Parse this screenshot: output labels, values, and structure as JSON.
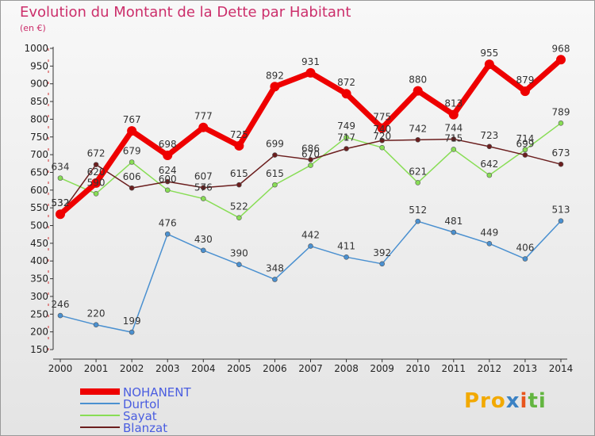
{
  "chart_data": {
    "type": "line",
    "title": "Evolution du Montant de la Dette par Habitant",
    "subtitle": "(en €)",
    "categories": [
      "2000",
      "2001",
      "2002",
      "2003",
      "2004",
      "2005",
      "2006",
      "2007",
      "2008",
      "2009",
      "2010",
      "2011",
      "2012",
      "2013",
      "2014"
    ],
    "ylim": [
      150,
      1000
    ],
    "yticks": [
      150,
      200,
      250,
      300,
      350,
      400,
      450,
      500,
      550,
      600,
      650,
      700,
      750,
      800,
      850,
      900,
      950,
      1000
    ],
    "grid": false,
    "legend_position": "bottom-left",
    "series": [
      {
        "name": "NOHANENT",
        "color": "#ee0000",
        "values": [
          532,
          620,
          767,
          698,
          777,
          725,
          892,
          931,
          872,
          775,
          880,
          813,
          955,
          879,
          968
        ]
      },
      {
        "name": "Durtol",
        "color": "#4a90d0",
        "values": [
          246,
          220,
          199,
          476,
          430,
          390,
          348,
          442,
          411,
          392,
          512,
          481,
          449,
          406,
          513
        ]
      },
      {
        "name": "Sayat",
        "color": "#88dd55",
        "values": [
          634,
          590,
          679,
          600,
          576,
          522,
          615,
          670,
          749,
          720,
          621,
          715,
          642,
          714,
          789
        ]
      },
      {
        "name": "Blanzat",
        "color": "#6b1e1e",
        "values": [
          532,
          672,
          606,
          624,
          607,
          615,
          699,
          686,
          717,
          740,
          742,
          744,
          723,
          699,
          673
        ]
      }
    ]
  },
  "logo": {
    "p1": "Pro",
    "p2": "x",
    "p3": "i",
    "p4": "ti"
  }
}
